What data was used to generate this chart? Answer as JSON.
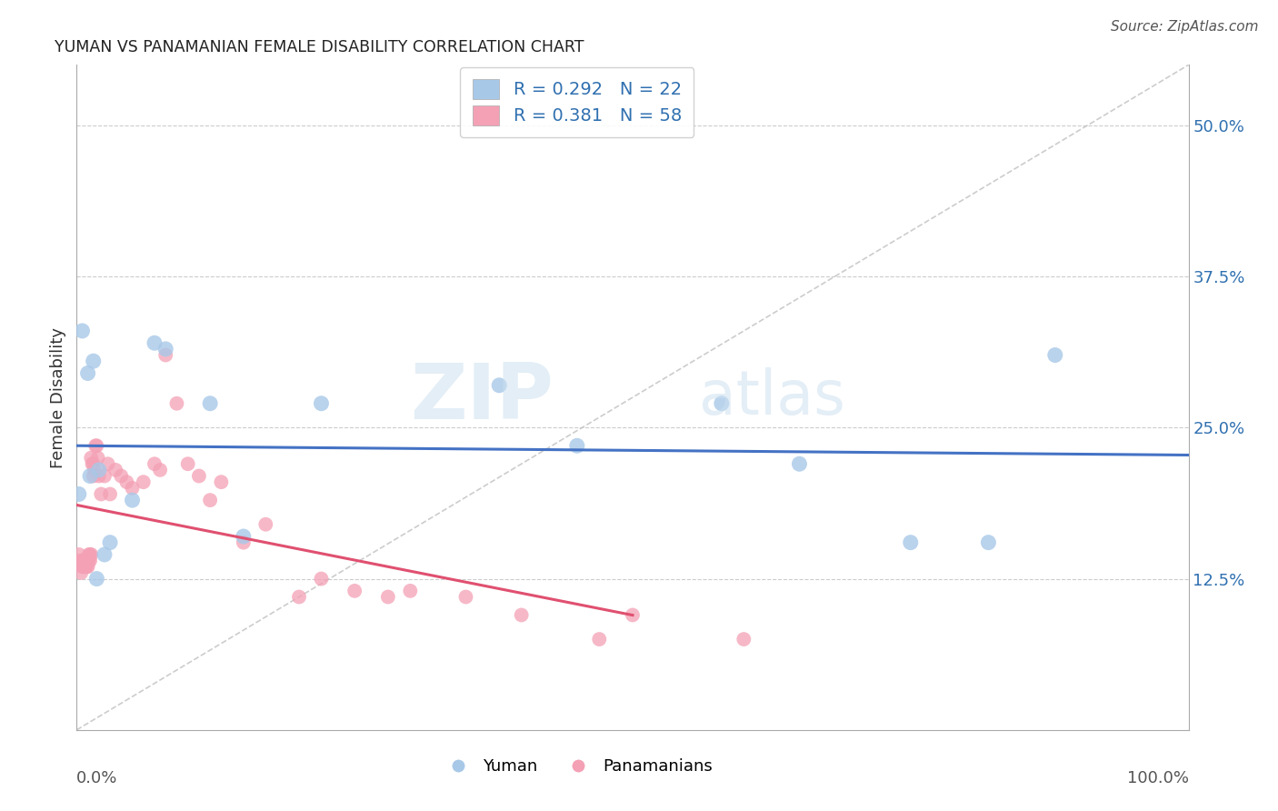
{
  "title": "YUMAN VS PANAMANIAN FEMALE DISABILITY CORRELATION CHART",
  "source": "Source: ZipAtlas.com",
  "ylabel": "Female Disability",
  "yticks": [
    0.125,
    0.25,
    0.375,
    0.5
  ],
  "ytick_labels": [
    "12.5%",
    "25.0%",
    "37.5%",
    "50.0%"
  ],
  "xlim": [
    0.0,
    1.0
  ],
  "ylim": [
    0.0,
    0.55
  ],
  "legend_R_yuman": "0.292",
  "legend_N_yuman": "22",
  "legend_R_pan": "0.381",
  "legend_N_pan": "58",
  "legend_label_yuman": "Yuman",
  "legend_label_pan": "Panamanians",
  "yuman_color": "#a8c8e8",
  "pan_color": "#f4a0b5",
  "line_yuman_color": "#4472c4",
  "line_pan_color": "#e05070",
  "diag_color": "#c0c0c0",
  "yuman_x": [
    0.005,
    0.01,
    0.015,
    0.02,
    0.025,
    0.05,
    0.07,
    0.08,
    0.12,
    0.15,
    0.38,
    0.45,
    0.58,
    0.65,
    0.75,
    0.82,
    0.88,
    0.002,
    0.012,
    0.018,
    0.03,
    0.22
  ],
  "yuman_y": [
    0.33,
    0.295,
    0.305,
    0.215,
    0.145,
    0.19,
    0.32,
    0.315,
    0.27,
    0.16,
    0.285,
    0.235,
    0.27,
    0.22,
    0.155,
    0.155,
    0.31,
    0.195,
    0.21,
    0.125,
    0.155,
    0.27
  ],
  "pan_x": [
    0.002,
    0.003,
    0.004,
    0.005,
    0.005,
    0.006,
    0.006,
    0.007,
    0.007,
    0.008,
    0.008,
    0.009,
    0.009,
    0.01,
    0.01,
    0.011,
    0.011,
    0.012,
    0.012,
    0.013,
    0.013,
    0.014,
    0.015,
    0.015,
    0.016,
    0.017,
    0.018,
    0.019,
    0.02,
    0.022,
    0.025,
    0.028,
    0.03,
    0.035,
    0.04,
    0.045,
    0.05,
    0.06,
    0.07,
    0.075,
    0.08,
    0.09,
    0.1,
    0.11,
    0.12,
    0.13,
    0.15,
    0.17,
    0.2,
    0.22,
    0.25,
    0.28,
    0.3,
    0.35,
    0.4,
    0.47,
    0.5,
    0.6
  ],
  "pan_y": [
    0.145,
    0.14,
    0.13,
    0.14,
    0.135,
    0.135,
    0.14,
    0.135,
    0.14,
    0.14,
    0.135,
    0.135,
    0.14,
    0.14,
    0.135,
    0.14,
    0.145,
    0.145,
    0.14,
    0.145,
    0.225,
    0.22,
    0.22,
    0.21,
    0.215,
    0.235,
    0.235,
    0.225,
    0.21,
    0.195,
    0.21,
    0.22,
    0.195,
    0.215,
    0.21,
    0.205,
    0.2,
    0.205,
    0.22,
    0.215,
    0.31,
    0.27,
    0.22,
    0.21,
    0.19,
    0.205,
    0.155,
    0.17,
    0.11,
    0.125,
    0.115,
    0.11,
    0.115,
    0.11,
    0.095,
    0.075,
    0.095,
    0.075
  ]
}
